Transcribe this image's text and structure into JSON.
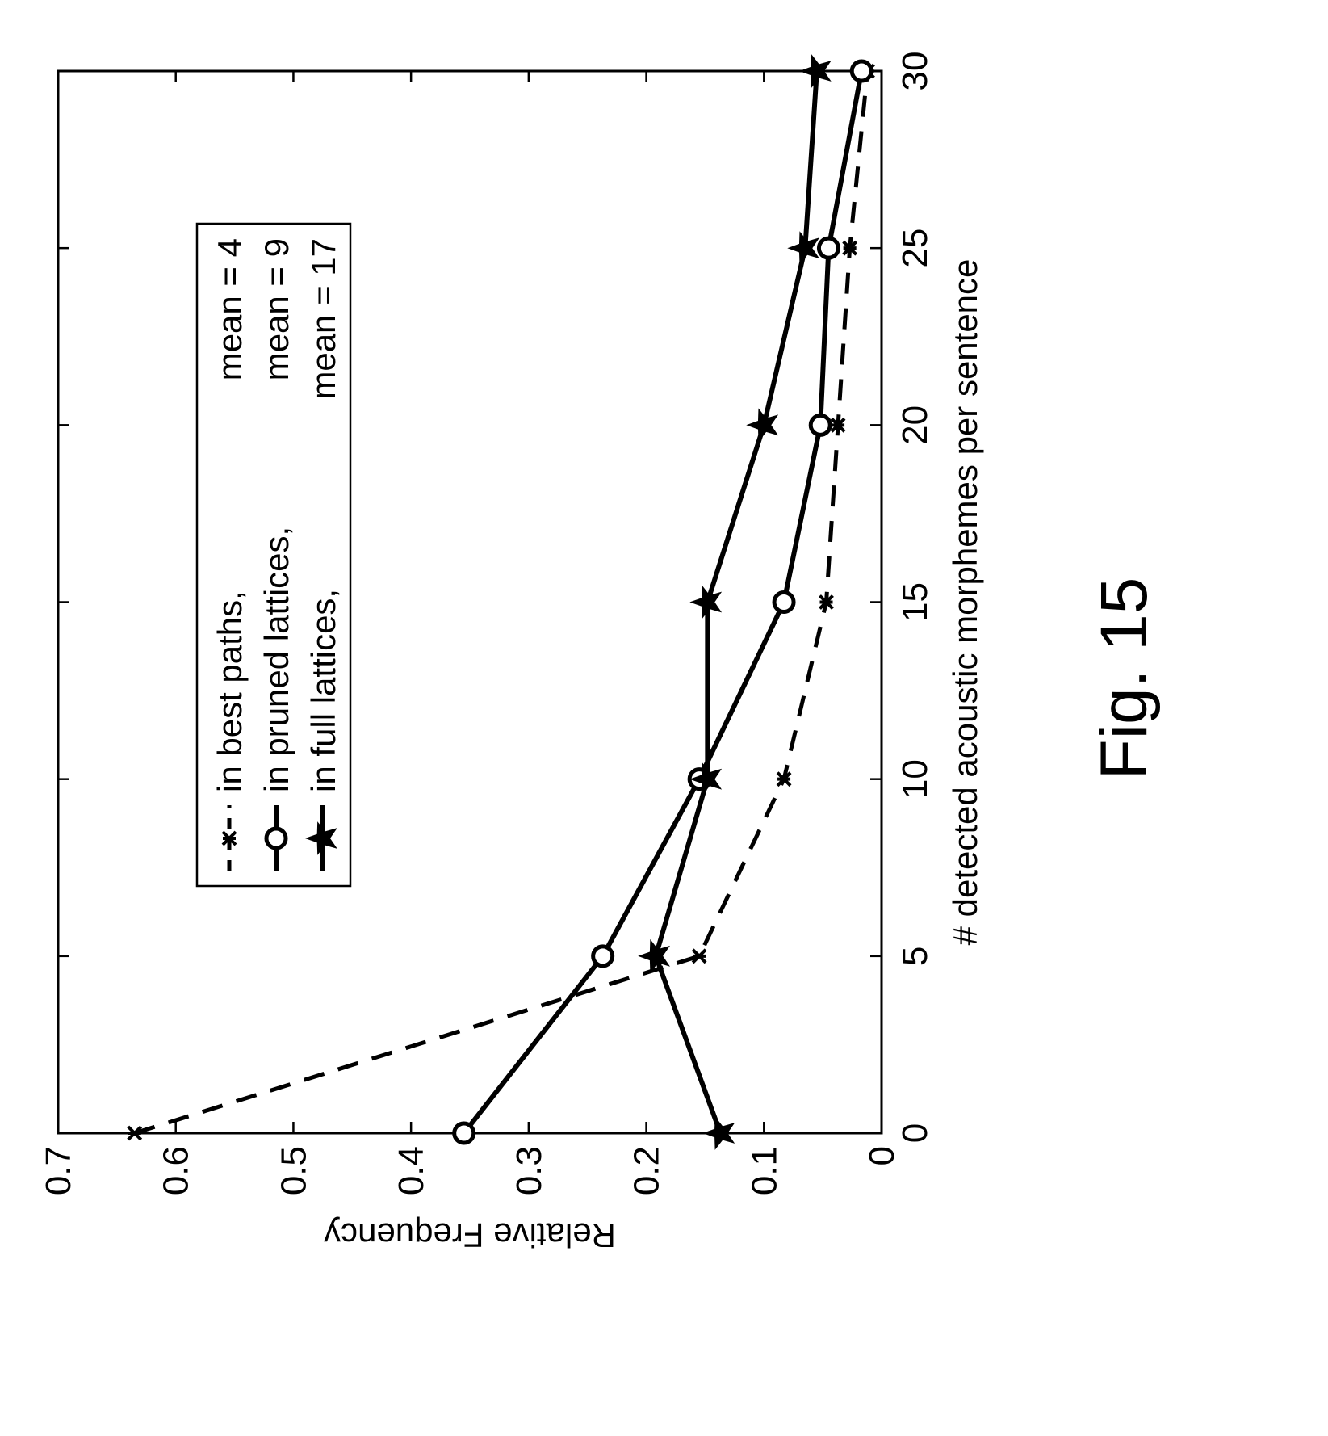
{
  "chart_data": {
    "type": "line",
    "xlabel": "# detected acoustic morphemes per sentence",
    "ylabel": "Relative Frequency",
    "xlim": [
      0,
      30
    ],
    "ylim": [
      0,
      0.7
    ],
    "xticks": [
      "0",
      "5",
      "10",
      "15",
      "20",
      "25",
      "30"
    ],
    "yticks": [
      "0",
      "0.1",
      "0.2",
      "0.3",
      "0.4",
      "0.5",
      "0.6",
      "0.7"
    ],
    "grid": false,
    "legend_position": "top-left",
    "orientation": "rotated 90 degrees counter-clockwise",
    "x": [
      0,
      5,
      10,
      15,
      20,
      25,
      30
    ],
    "series": [
      {
        "name": "in best paths,",
        "mean_label": "mean = 4",
        "style": "dashed",
        "marker": "x",
        "values": [
          0.635,
          0.155,
          0.083,
          0.047,
          0.037,
          0.027,
          0.012
        ]
      },
      {
        "name": "in pruned lattices,",
        "mean_label": "mean = 9",
        "style": "solid",
        "marker": "circle",
        "values": [
          0.355,
          0.237,
          0.155,
          0.083,
          0.052,
          0.045,
          0.017
        ]
      },
      {
        "name": "in full lattices,",
        "mean_label": "mean = 17",
        "style": "solid",
        "marker": "star",
        "values": [
          0.137,
          0.192,
          0.148,
          0.148,
          0.1,
          0.065,
          0.055
        ]
      }
    ]
  },
  "caption": "Fig. 15"
}
